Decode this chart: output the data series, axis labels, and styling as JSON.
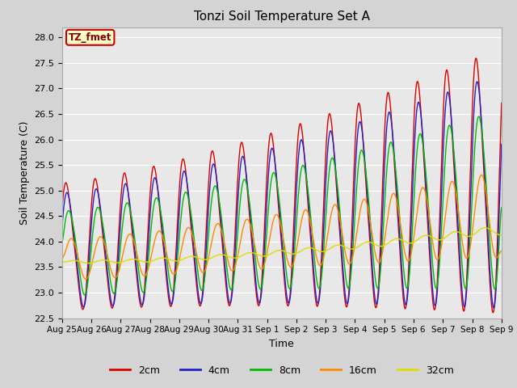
{
  "title": "Tonzi Soil Temperature Set A",
  "xlabel": "Time",
  "ylabel": "Soil Temperature (C)",
  "ylim": [
    22.5,
    28.2
  ],
  "fig_bg": "#d4d4d4",
  "plot_bg": "#e8e8e8",
  "grid_color": "#ffffff",
  "annotation_text": "TZ_fmet",
  "annotation_bg": "#ffffcc",
  "annotation_edge": "#cc0000",
  "line_colors": {
    "2cm": "#dd0000",
    "4cm": "#2222cc",
    "8cm": "#00bb00",
    "16cm": "#ff8800",
    "32cm": "#dddd00"
  },
  "line_width": 1.0,
  "xtick_labels": [
    "Aug 25",
    "Aug 26",
    "Aug 27",
    "Aug 28",
    "Aug 29",
    "Aug 30",
    "Aug 31",
    "Sep 1",
    "Sep 2",
    "Sep 3",
    "Sep 4",
    "Sep 5",
    "Sep 6",
    "Sep 7",
    "Sep 8",
    "Sep 9"
  ],
  "ytick_vals": [
    22.5,
    23.0,
    23.5,
    24.0,
    24.5,
    25.0,
    25.5,
    26.0,
    26.5,
    27.0,
    27.5,
    28.0
  ],
  "n_points": 720,
  "end_day": 15.0
}
